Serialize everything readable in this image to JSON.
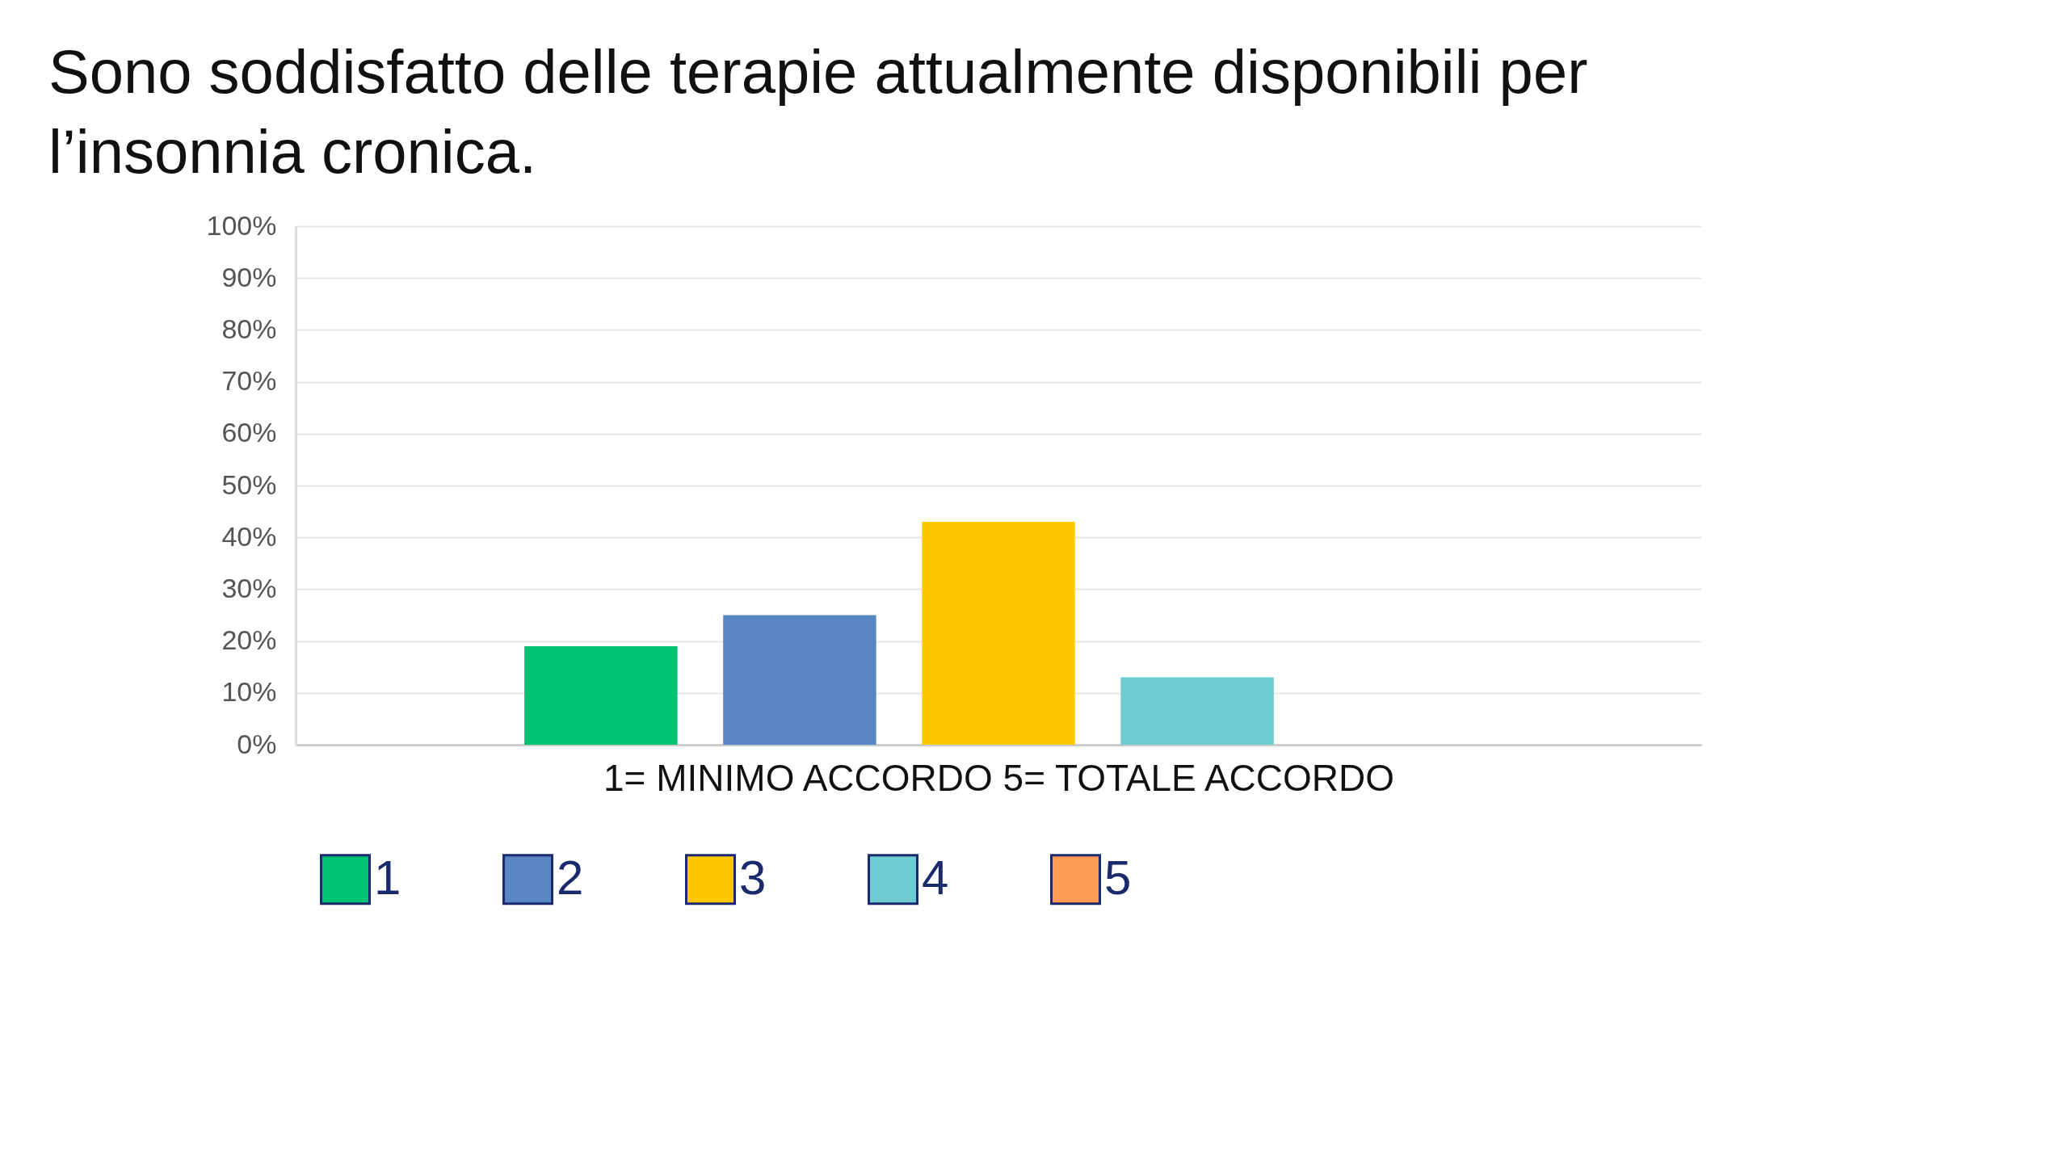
{
  "chart_data": {
    "type": "bar",
    "title": "Sono soddisfatto delle terapie attualmente disponibili per l’insonnia cronica.",
    "xlabel": "1= MINIMO ACCORDO    5= TOTALE ACCORDO",
    "categories": [
      null
    ],
    "series": [
      {
        "name": "1",
        "color": "#00c373",
        "values": [
          19
        ]
      },
      {
        "name": "2",
        "color": "#5b86c4",
        "values": [
          25
        ]
      },
      {
        "name": "3",
        "color": "#fdc800",
        "values": [
          43
        ]
      },
      {
        "name": "4",
        "color": "#6dccd2",
        "values": [
          13
        ]
      },
      {
        "name": "5",
        "color": "#ff9a54",
        "values": [
          0
        ]
      }
    ],
    "ylim": [
      0,
      100
    ],
    "yticks": [
      {
        "value": 0,
        "label": "0%"
      },
      {
        "value": 10,
        "label": "10%"
      },
      {
        "value": 20,
        "label": "20%"
      },
      {
        "value": 30,
        "label": "30%"
      },
      {
        "value": 40,
        "label": "40%"
      },
      {
        "value": 50,
        "label": "50%"
      },
      {
        "value": 60,
        "label": "60%"
      },
      {
        "value": 70,
        "label": "70%"
      },
      {
        "value": 80,
        "label": "80%"
      },
      {
        "value": 90,
        "label": "90%"
      },
      {
        "value": 100,
        "label": "100%"
      }
    ],
    "grid": "y",
    "legend": "bottom",
    "tick_labels": "y"
  }
}
